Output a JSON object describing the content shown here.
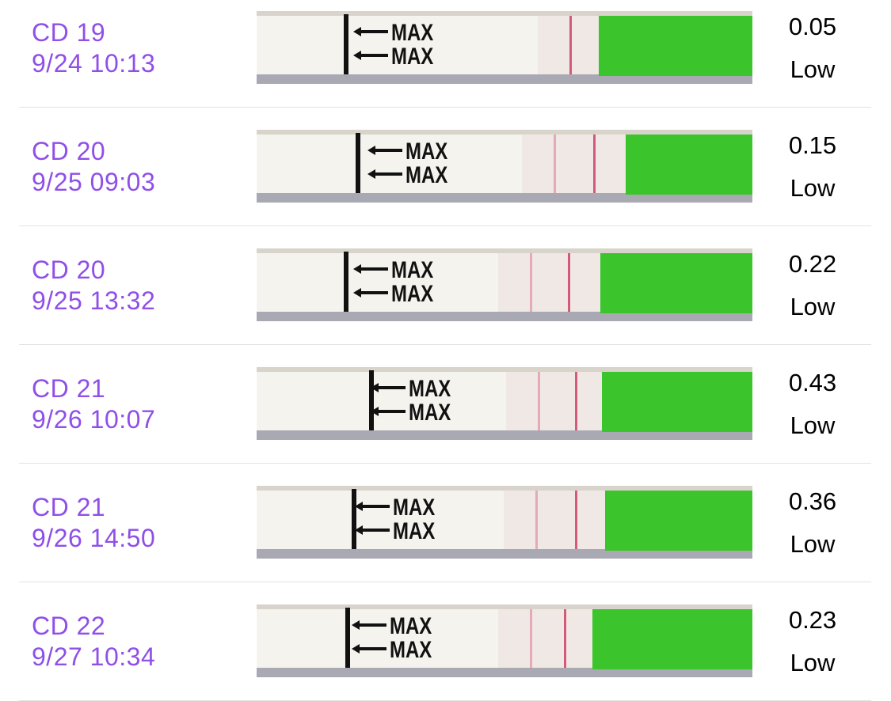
{
  "strip_text": "MAX",
  "rows": [
    {
      "cycle_day": "CD 19",
      "datetime": "9/24 10:13",
      "value": 0.05,
      "level": "Low"
    },
    {
      "cycle_day": "CD 20",
      "datetime": "9/25 09:03",
      "value": 0.15,
      "level": "Low"
    },
    {
      "cycle_day": "CD 20",
      "datetime": "9/25 13:32",
      "value": 0.22,
      "level": "Low"
    },
    {
      "cycle_day": "CD 21",
      "datetime": "9/26 10:07",
      "value": 0.43,
      "level": "Low"
    },
    {
      "cycle_day": "CD 21",
      "datetime": "9/26 14:50",
      "value": 0.36,
      "level": "Low"
    },
    {
      "cycle_day": "CD 22",
      "datetime": "9/27 10:34",
      "value": 0.23,
      "level": "Low"
    }
  ]
}
